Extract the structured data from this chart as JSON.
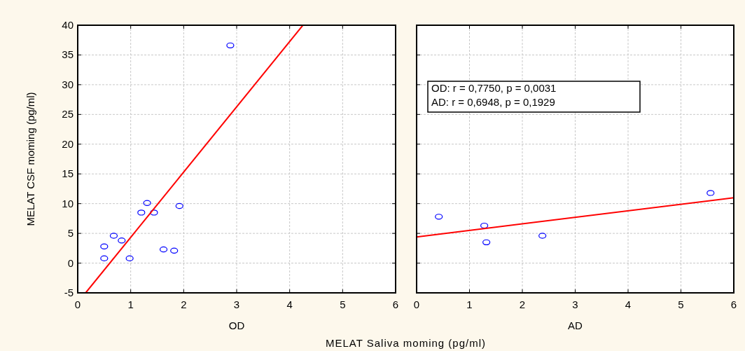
{
  "chart_data": [
    {
      "type": "scatter",
      "xlabel": "OD",
      "ylabel": "MELAT CSF moming (pg/ml)",
      "xlim": [
        0,
        6
      ],
      "ylim": [
        -5,
        40
      ],
      "xticks": [
        0,
        1,
        2,
        3,
        4,
        5,
        6
      ],
      "yticks": [
        -5,
        0,
        5,
        10,
        15,
        20,
        25,
        30,
        35,
        40
      ],
      "grid": true,
      "series": [
        {
          "marker": "circle",
          "color": "#0000ff",
          "x": [
            0.5,
            0.5,
            0.68,
            0.83,
            0.98,
            1.2,
            1.31,
            1.44,
            1.62,
            1.82,
            1.92,
            2.88
          ],
          "values": [
            2.8,
            0.8,
            4.6,
            3.8,
            0.8,
            8.5,
            10.1,
            8.5,
            2.3,
            2.1,
            9.6,
            36.6
          ]
        },
        {
          "type": "line",
          "marker": "none",
          "color": "#ff0000",
          "x": [
            0.15,
            4.25
          ],
          "values": [
            -5,
            40
          ]
        }
      ],
      "annotations": [
        "MELAT Saliva moming (pg/ml)"
      ]
    },
    {
      "type": "scatter",
      "xlabel": "AD",
      "xlim": [
        0,
        6
      ],
      "ylim": [
        -5,
        40
      ],
      "xticks": [
        0,
        1,
        2,
        3,
        4,
        5,
        6
      ],
      "yticks": [
        -5,
        0,
        5,
        10,
        15,
        20,
        25,
        30,
        35,
        40
      ],
      "grid": true,
      "tick_labels": "x",
      "series": [
        {
          "marker": "circle",
          "color": "#0000ff",
          "x": [
            0.42,
            1.28,
            1.32,
            2.38,
            5.56
          ],
          "values": [
            7.8,
            6.3,
            3.5,
            4.6,
            11.8
          ]
        },
        {
          "type": "line",
          "marker": "none",
          "color": "#ff0000",
          "x": [
            0,
            6
          ],
          "values": [
            4.4,
            11
          ]
        }
      ],
      "annotations": [
        "OD:  r = 0,7750,  p = 0,0031",
        "AD:  r = 0,6948,  p = 0,1929"
      ]
    }
  ]
}
